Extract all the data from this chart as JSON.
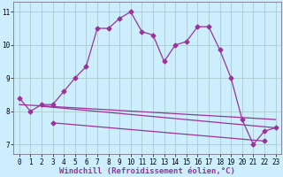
{
  "background_color": "#cceeff",
  "grid_color": "#aacccc",
  "line_color": "#993399",
  "xlabel": "Windchill (Refroidissement éolien,°C)",
  "xlim": [
    -0.5,
    23.5
  ],
  "ylim": [
    6.7,
    11.3
  ],
  "yticks": [
    7,
    8,
    9,
    10,
    11
  ],
  "xticks": [
    0,
    1,
    2,
    3,
    4,
    5,
    6,
    7,
    8,
    9,
    10,
    11,
    12,
    13,
    14,
    15,
    16,
    17,
    18,
    19,
    20,
    21,
    22,
    23
  ],
  "main_x": [
    0,
    1,
    2,
    3,
    4,
    5,
    6,
    7,
    8,
    9,
    10,
    11,
    12,
    13,
    14,
    15,
    16,
    17,
    18,
    19,
    20,
    21,
    22,
    23
  ],
  "main_y": [
    8.4,
    8.0,
    8.2,
    8.2,
    8.6,
    9.0,
    9.35,
    10.5,
    10.5,
    10.8,
    11.0,
    10.4,
    10.3,
    9.5,
    10.0,
    10.1,
    10.55,
    10.55,
    9.85,
    9.0,
    7.75,
    7.0,
    7.4,
    7.5
  ],
  "line2_x": [
    0,
    23
  ],
  "line2_y": [
    8.2,
    7.75
  ],
  "line3_x": [
    2,
    23
  ],
  "line3_y": [
    8.15,
    7.5
  ],
  "line4_x": [
    3,
    22
  ],
  "line4_y": [
    7.65,
    7.1
  ],
  "marker": "D",
  "markersize": 2.5,
  "linewidth": 0.9,
  "tick_fontsize": 5.5,
  "xlabel_fontsize": 6.5
}
